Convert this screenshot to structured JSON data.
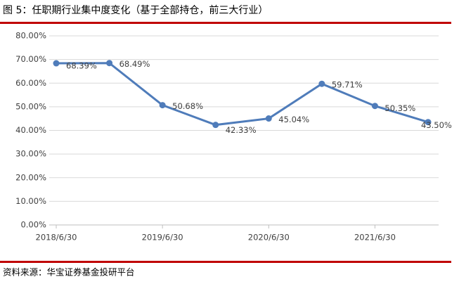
{
  "chart_data": {
    "type": "line",
    "title": "图 5：任职期行业集中度变化（基于全部持仓，前三大行业）",
    "source": "资料来源：华宝证券基金投研平台",
    "categories": [
      "2018/6/30",
      null,
      "2019/6/30",
      null,
      "2020/6/30",
      null,
      "2021/6/30",
      null
    ],
    "series": [
      {
        "color": "#4f7cba",
        "values": [
          68.39,
          68.49,
          50.68,
          42.33,
          45.04,
          59.71,
          50.35,
          43.5
        ],
        "value_labels": [
          "68.39%",
          "68.49%",
          "50.68%",
          "42.33%",
          "45.04%",
          "59.71%",
          "50.35%",
          "43.50%"
        ]
      }
    ],
    "ylim": [
      0,
      80
    ],
    "yticks": [
      {
        "value": 0,
        "label": "0.00%"
      },
      {
        "value": 10,
        "label": "10.00%"
      },
      {
        "value": 20,
        "label": "20.00%"
      },
      {
        "value": 30,
        "label": "30.00%"
      },
      {
        "value": 40,
        "label": "40.00%"
      },
      {
        "value": 50,
        "label": "50.00%"
      },
      {
        "value": 60,
        "label": "60.00%"
      },
      {
        "value": 70,
        "label": "70.00%"
      },
      {
        "value": 80,
        "label": "80.00%"
      }
    ],
    "grid": true
  }
}
